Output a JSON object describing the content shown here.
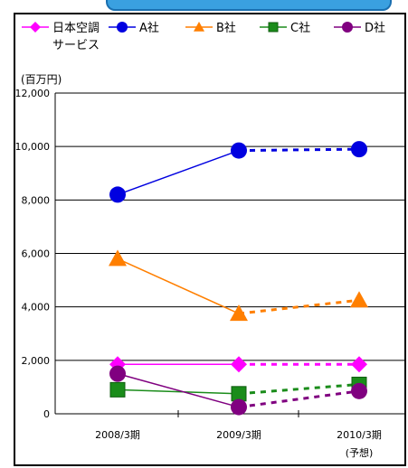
{
  "chart_data": {
    "type": "line",
    "unit_label": "(百万円)",
    "categories": [
      "2008/3期",
      "2009/3期",
      "2010/3期"
    ],
    "category_note": "(予想)",
    "y_ticks": [
      "12,000",
      "10,000",
      "8,000",
      "6,000",
      "4,000",
      "2,000",
      "0"
    ],
    "ylim": [
      0,
      12000
    ],
    "grid": true,
    "legend_position": "top",
    "series": [
      {
        "name": "日本空調サービス",
        "name_line1": "日本空調",
        "name_line2": "サービス",
        "color": "#ff00ff",
        "marker": "diamond",
        "values": [
          1850,
          1850,
          1850
        ]
      },
      {
        "name": "A社",
        "color": "#0000e0",
        "marker": "circle",
        "values": [
          8200,
          9850,
          9900
        ]
      },
      {
        "name": "B社",
        "color": "#ff7f00",
        "marker": "triangle",
        "values": [
          5800,
          3750,
          4250
        ]
      },
      {
        "name": "C社",
        "color": "#1a8c1a",
        "marker": "square",
        "values": [
          900,
          750,
          1100
        ]
      },
      {
        "name": "D社",
        "color": "#800080",
        "marker": "circle",
        "values": [
          1500,
          250,
          850
        ]
      }
    ]
  }
}
